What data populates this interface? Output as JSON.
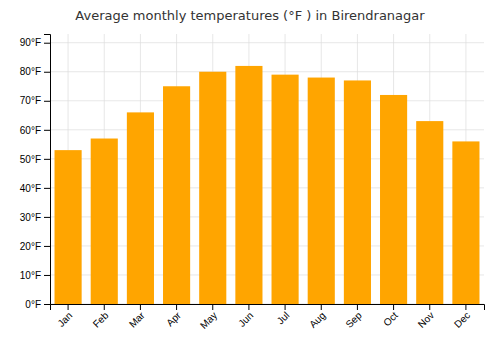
{
  "chart_data": {
    "type": "bar",
    "title": "Average monthly temperatures (°F ) in Birendranagar",
    "categories": [
      "Jan",
      "Feb",
      "Mar",
      "Apr",
      "May",
      "Jun",
      "Jul",
      "Aug",
      "Sep",
      "Oct",
      "Nov",
      "Dec"
    ],
    "values": [
      53,
      57,
      66,
      75,
      80,
      82,
      79,
      78,
      77,
      72,
      63,
      56
    ],
    "color": "#FFA500",
    "ylim": [
      0,
      93
    ],
    "yticks": [
      {
        "value": 0,
        "label": "0°F"
      },
      {
        "value": 10,
        "label": "10°F"
      },
      {
        "value": 20,
        "label": "20°F"
      },
      {
        "value": 30,
        "label": "30°F"
      },
      {
        "value": 40,
        "label": "40°F"
      },
      {
        "value": 50,
        "label": "50°F"
      },
      {
        "value": 60,
        "label": "60°F"
      },
      {
        "value": 70,
        "label": "70°F"
      },
      {
        "value": 80,
        "label": "80°F"
      },
      {
        "value": 90,
        "label": "90°F"
      }
    ],
    "grid": true
  }
}
